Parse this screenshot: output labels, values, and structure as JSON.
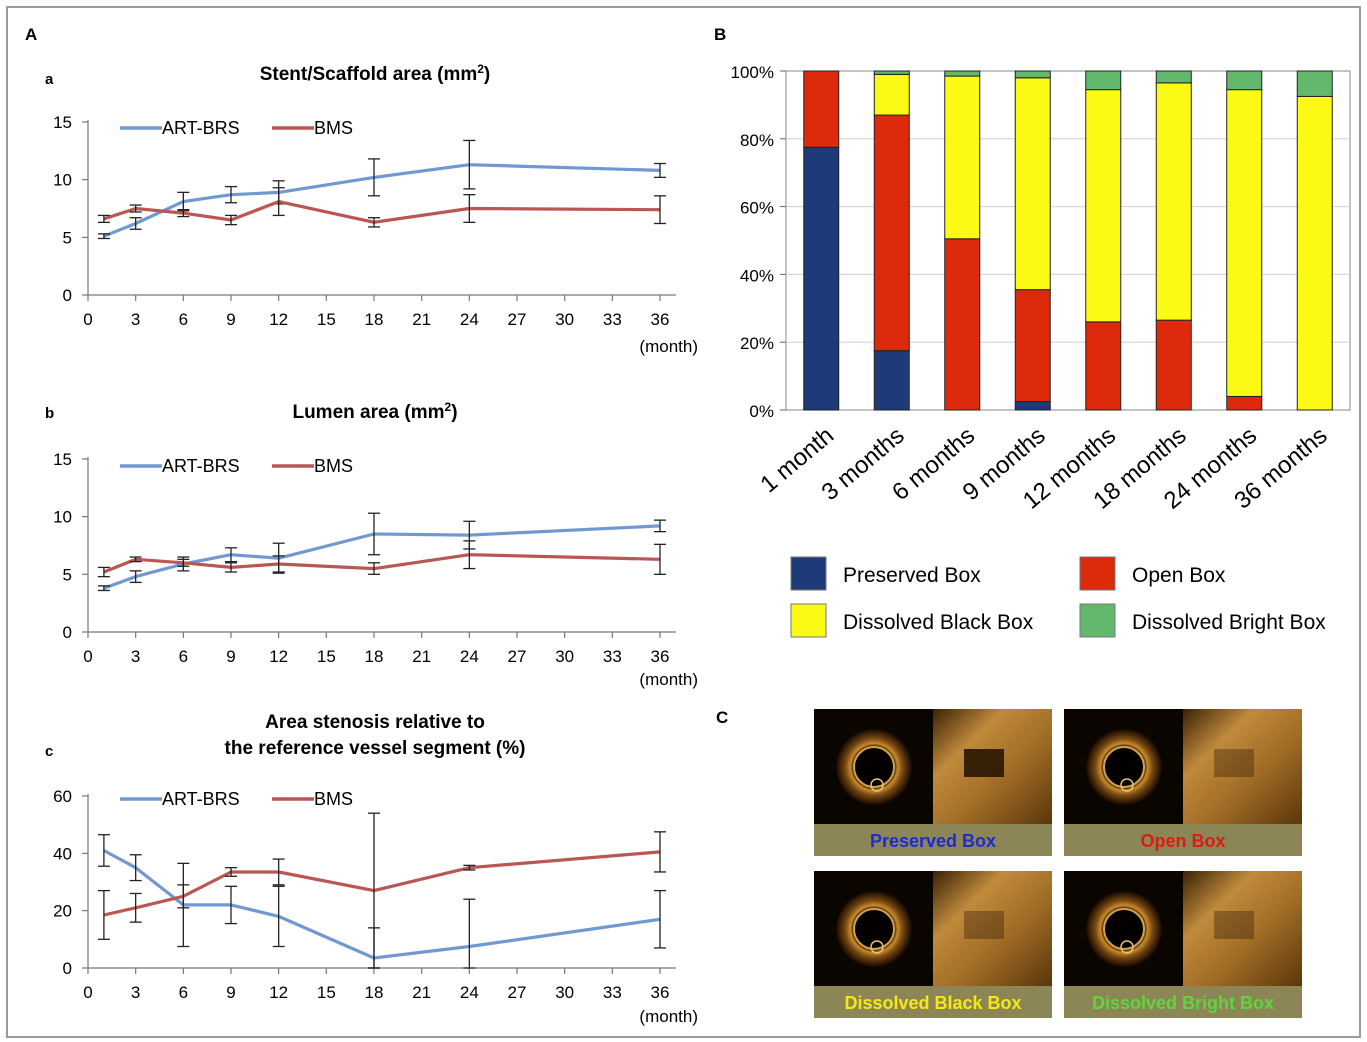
{
  "panels": {
    "A": "A",
    "B": "B",
    "C": "C"
  },
  "colors": {
    "art_brs": "#7099d1",
    "bms": "#b95754",
    "preserved": "#1f3a78",
    "open": "#dd2a0c",
    "dissolved_black": "#fafa14",
    "dissolved_bright": "#62b86c"
  },
  "chart_data": [
    {
      "id": "a",
      "letter": "a",
      "type": "line",
      "title": "Stent/Scaffold area (mm",
      "title_sup": "2",
      "title_end": ")",
      "x_unit": "(month)",
      "xticks": [
        0,
        3,
        6,
        9,
        12,
        15,
        18,
        21,
        24,
        27,
        30,
        33,
        36
      ],
      "yticks": [
        0,
        5,
        10,
        15
      ],
      "xlim": [
        0,
        36
      ],
      "ylim": [
        0,
        15
      ],
      "legend_position": "top-left",
      "series": [
        {
          "name": "ART-BRS",
          "color": "#7099d1",
          "x": [
            1,
            3,
            6,
            9,
            12,
            18,
            24,
            36
          ],
          "y": [
            5.1,
            6.2,
            8.1,
            8.7,
            8.9,
            10.2,
            11.3,
            10.8
          ],
          "err": [
            0.2,
            0.5,
            0.8,
            0.7,
            1.0,
            1.6,
            2.1,
            0.6
          ]
        },
        {
          "name": "BMS",
          "color": "#b95754",
          "x": [
            1,
            3,
            6,
            9,
            12,
            18,
            24,
            36
          ],
          "y": [
            6.6,
            7.5,
            7.1,
            6.5,
            8.1,
            6.3,
            7.5,
            7.4
          ],
          "err": [
            0.3,
            0.3,
            0.3,
            0.4,
            1.2,
            0.4,
            1.2,
            1.2
          ]
        }
      ]
    },
    {
      "id": "b",
      "letter": "b",
      "type": "line",
      "title": "Lumen area (mm",
      "title_sup": "2",
      "title_end": ")",
      "x_unit": "(month)",
      "xticks": [
        0,
        3,
        6,
        9,
        12,
        15,
        18,
        21,
        24,
        27,
        30,
        33,
        36
      ],
      "yticks": [
        0,
        5,
        10,
        15
      ],
      "xlim": [
        0,
        36
      ],
      "ylim": [
        0,
        15
      ],
      "legend_position": "top-left",
      "series": [
        {
          "name": "ART-BRS",
          "color": "#7099d1",
          "x": [
            1,
            3,
            6,
            9,
            12,
            18,
            24,
            36
          ],
          "y": [
            3.8,
            4.8,
            5.9,
            6.7,
            6.4,
            8.5,
            8.4,
            9.2
          ],
          "err": [
            0.2,
            0.5,
            0.6,
            0.6,
            1.3,
            1.8,
            1.2,
            0.5
          ]
        },
        {
          "name": "BMS",
          "color": "#b95754",
          "x": [
            1,
            3,
            6,
            9,
            12,
            18,
            24,
            36
          ],
          "y": [
            5.2,
            6.3,
            6.0,
            5.6,
            5.9,
            5.5,
            6.7,
            6.3
          ],
          "err": [
            0.4,
            0.2,
            0.3,
            0.4,
            0.7,
            0.5,
            1.2,
            1.3
          ]
        }
      ]
    },
    {
      "id": "c",
      "letter": "c",
      "type": "line",
      "title_line1": "Area stenosis relative to",
      "title_line2": "the reference vessel segment (%)",
      "x_unit": "(month)",
      "xticks": [
        0,
        3,
        6,
        9,
        12,
        15,
        18,
        21,
        24,
        27,
        30,
        33,
        36
      ],
      "yticks": [
        0,
        20,
        40,
        60
      ],
      "xlim": [
        0,
        36
      ],
      "ylim": [
        0,
        60
      ],
      "legend_position": "top-left",
      "series": [
        {
          "name": "ART-BRS",
          "color": "#7099d1",
          "x": [
            1,
            3,
            6,
            9,
            12,
            18,
            24,
            36
          ],
          "y": [
            41,
            35,
            22,
            22,
            18,
            3.5,
            7.5,
            17
          ],
          "err": [
            5.5,
            4.5,
            14.5,
            6.5,
            10.5,
            10.5,
            16.5,
            10
          ]
        },
        {
          "name": "BMS",
          "color": "#b95754",
          "x": [
            1,
            3,
            6,
            9,
            12,
            18,
            24,
            36
          ],
          "y": [
            18.5,
            21,
            25,
            33.5,
            33.5,
            27,
            35,
            40.5
          ],
          "err": [
            8.5,
            5,
            4,
            1.5,
            4.5,
            27,
            0.8,
            7
          ]
        }
      ]
    },
    {
      "id": "B",
      "type": "bar",
      "stacked": true,
      "percent": true,
      "categories": [
        "1 month",
        "3 months",
        "6 months",
        "9 months",
        "12 months",
        "18 months",
        "24 months",
        "36 months"
      ],
      "yticks": [
        "0%",
        "20%",
        "40%",
        "60%",
        "80%",
        "100%"
      ],
      "ylim": [
        0,
        100
      ],
      "legend_position": "bottom",
      "series": [
        {
          "name": "Preserved Box",
          "color": "#1f3a78",
          "values": [
            77.5,
            17.5,
            0,
            2.5,
            0,
            0,
            0,
            0
          ]
        },
        {
          "name": "Open Box",
          "color": "#dd2a0c",
          "values": [
            22.5,
            69.5,
            50.5,
            33,
            26,
            26.5,
            4,
            0
          ]
        },
        {
          "name": "Dissolved Black Box",
          "color": "#fafa14",
          "values": [
            0,
            12,
            48,
            62.5,
            68.5,
            70,
            90.5,
            92.5
          ]
        },
        {
          "name": "Dissolved Bright Box",
          "color": "#62b86c",
          "values": [
            0,
            1,
            1.5,
            2,
            5.5,
            3.5,
            5.5,
            7.5
          ]
        }
      ]
    }
  ],
  "oct_panels": [
    {
      "caption": "Preserved Box",
      "caption_color": "#1c2bd6"
    },
    {
      "caption": "Open Box",
      "caption_color": "#d81d12"
    },
    {
      "caption": "Dissolved Black Box",
      "caption_color": "#f6e912"
    },
    {
      "caption": "Dissolved Bright Box",
      "caption_color": "#5fd63e"
    }
  ]
}
